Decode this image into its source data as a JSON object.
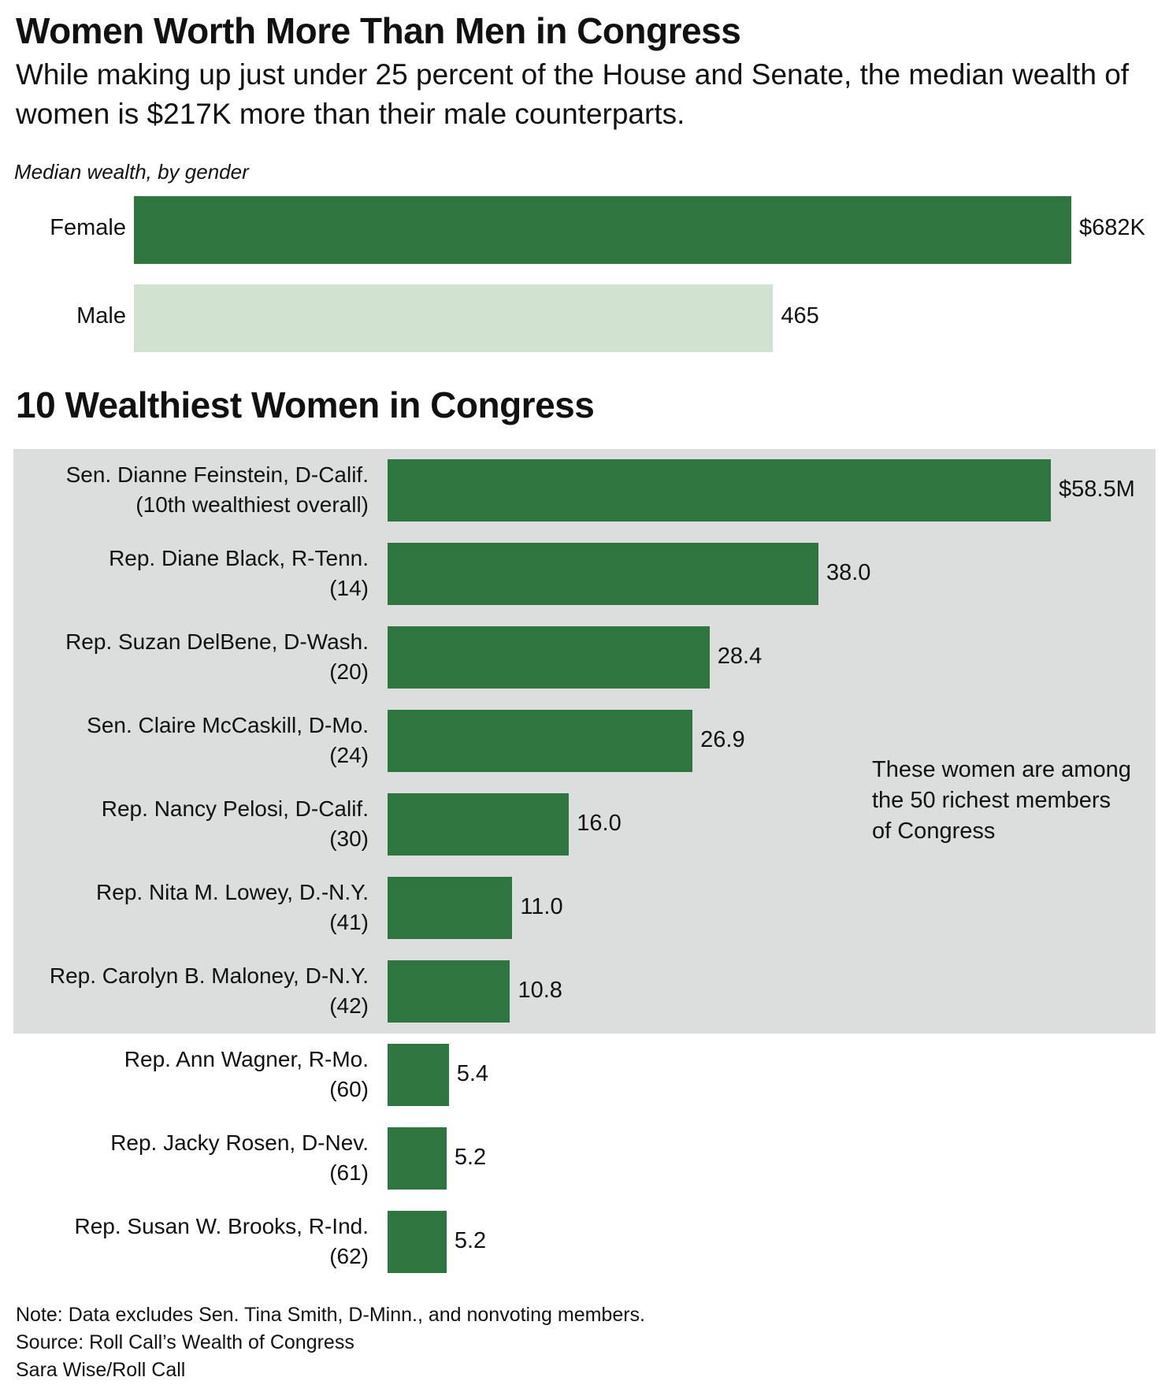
{
  "title": "Women Worth More Than Men in Congress",
  "subtitle": "While making up just under 25 percent of the House and Senate, the median wealth of women is $217K more than their male counterparts.",
  "colors": {
    "female_bar": "#2f753f",
    "male_bar": "#cfe3d0",
    "top10_bar": "#2f753f",
    "highlight_background": "#dcdedd"
  },
  "chart_data": [
    {
      "type": "bar",
      "orientation": "horizontal",
      "title": "Median wealth, by gender",
      "xlabel": "",
      "ylabel": "",
      "unit": "thousands of dollars",
      "categories": [
        "Female",
        "Male"
      ],
      "values": [
        682,
        465
      ],
      "value_labels": [
        "$682K",
        "465"
      ],
      "grid": false,
      "xlim": [
        0,
        682
      ]
    },
    {
      "type": "bar",
      "orientation": "horizontal",
      "title": "10 Wealthiest Women in Congress",
      "xlabel": "",
      "ylabel": "",
      "unit": "millions of dollars",
      "categories": [
        {
          "name": "Sen. Dianne Feinstein, D-Calif.",
          "rank": "(10th wealthiest overall)"
        },
        {
          "name": "Rep. Diane Black, R-Tenn.",
          "rank": "(14)"
        },
        {
          "name": "Rep. Suzan DelBene, D-Wash.",
          "rank": "(20)"
        },
        {
          "name": "Sen. Claire McCaskill, D-Mo.",
          "rank": "(24)"
        },
        {
          "name": "Rep. Nancy Pelosi, D-Calif.",
          "rank": "(30)"
        },
        {
          "name": "Rep. Nita M. Lowey, D.-N.Y.",
          "rank": "(41)"
        },
        {
          "name": "Rep. Carolyn B. Maloney, D-N.Y.",
          "rank": "(42)"
        },
        {
          "name": "Rep. Ann Wagner, R-Mo.",
          "rank": "(60)"
        },
        {
          "name": "Rep. Jacky Rosen, D-Nev.",
          "rank": "(61)"
        },
        {
          "name": "Rep. Susan W. Brooks, R-Ind.",
          "rank": "(62)"
        }
      ],
      "values": [
        58.5,
        38.0,
        28.4,
        26.9,
        16.0,
        11.0,
        10.8,
        5.4,
        5.2,
        5.2
      ],
      "value_labels": [
        "$58.5M",
        "38.0",
        "28.4",
        "26.9",
        "16.0",
        "11.0",
        "10.8",
        "5.4",
        "5.2",
        "5.2"
      ],
      "highlighted_count": 7,
      "annotation": "These women are among the 50 richest members of Congress",
      "grid": false,
      "xlim": [
        0,
        58.5
      ]
    }
  ],
  "footer": {
    "note": "Note: Data excludes Sen. Tina Smith, D-Minn., and nonvoting members.",
    "source": "Source: Roll Call’s Wealth of Congress",
    "credit": "Sara Wise/Roll Call"
  }
}
